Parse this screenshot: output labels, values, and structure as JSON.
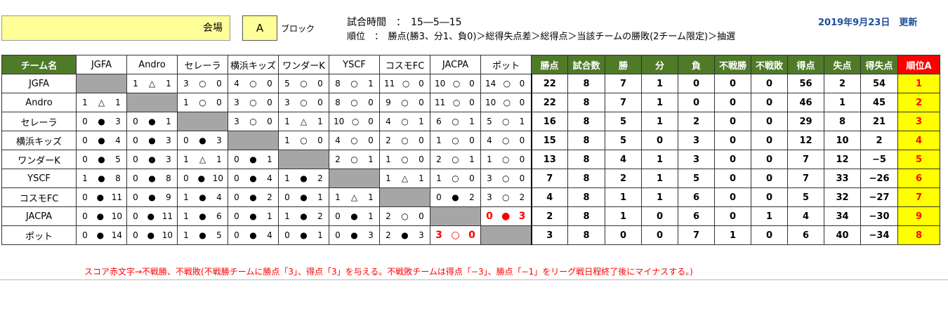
{
  "header": {
    "venue_label": "会場",
    "block_value": "A",
    "block_text": "ブロック",
    "match_time": "試合時間　：　15―5―15",
    "ranking_rule": "順位　：　勝点(勝3、分1、負0)＞総得失点差＞総得点＞当該チームの勝敗(2チーム限定)＞抽選",
    "updated": "2019年9月23日　更新"
  },
  "table": {
    "team_header": "チーム名",
    "opponents": [
      "JGFA",
      "Andro",
      "セレーラ",
      "横浜キッズ",
      "ワンダーK",
      "YSCF",
      "コスモFC",
      "JACPA",
      "ポット"
    ],
    "stat_headers": [
      "勝点",
      "試合数",
      "勝",
      "分",
      "負",
      "不戦勝",
      "不戦敗",
      "得点",
      "失点",
      "得失点"
    ],
    "rank_header": "順位A",
    "rows": [
      {
        "team": "JGFA",
        "results": [
          null,
          [
            "1",
            "△",
            "1"
          ],
          [
            "3",
            "○",
            "0"
          ],
          [
            "4",
            "○",
            "0"
          ],
          [
            "5",
            "○",
            "0"
          ],
          [
            "8",
            "○",
            "1"
          ],
          [
            "11",
            "○",
            "0"
          ],
          [
            "10",
            "○",
            "0"
          ],
          [
            "14",
            "○",
            "0"
          ]
        ],
        "stats": [
          "22",
          "8",
          "7",
          "1",
          "0",
          "0",
          "0",
          "56",
          "2",
          "54"
        ],
        "rank": "1"
      },
      {
        "team": "Andro",
        "results": [
          [
            "1",
            "△",
            "1"
          ],
          null,
          [
            "1",
            "○",
            "0"
          ],
          [
            "3",
            "○",
            "0"
          ],
          [
            "3",
            "○",
            "0"
          ],
          [
            "8",
            "○",
            "0"
          ],
          [
            "9",
            "○",
            "0"
          ],
          [
            "11",
            "○",
            "0"
          ],
          [
            "10",
            "○",
            "0"
          ]
        ],
        "stats": [
          "22",
          "8",
          "7",
          "1",
          "0",
          "0",
          "0",
          "46",
          "1",
          "45"
        ],
        "rank": "2"
      },
      {
        "team": "セレーラ",
        "results": [
          [
            "0",
            "●",
            "3"
          ],
          [
            "0",
            "●",
            "1"
          ],
          null,
          [
            "3",
            "○",
            "0"
          ],
          [
            "1",
            "△",
            "1"
          ],
          [
            "10",
            "○",
            "0"
          ],
          [
            "4",
            "○",
            "1"
          ],
          [
            "6",
            "○",
            "1"
          ],
          [
            "5",
            "○",
            "1"
          ]
        ],
        "stats": [
          "16",
          "8",
          "5",
          "1",
          "2",
          "0",
          "0",
          "29",
          "8",
          "21"
        ],
        "rank": "3"
      },
      {
        "team": "横浜キッズ",
        "results": [
          [
            "0",
            "●",
            "4"
          ],
          [
            "0",
            "●",
            "3"
          ],
          [
            "0",
            "●",
            "3"
          ],
          null,
          [
            "1",
            "○",
            "0"
          ],
          [
            "4",
            "○",
            "0"
          ],
          [
            "2",
            "○",
            "0"
          ],
          [
            "1",
            "○",
            "0"
          ],
          [
            "4",
            "○",
            "0"
          ]
        ],
        "stats": [
          "15",
          "8",
          "5",
          "0",
          "3",
          "0",
          "0",
          "12",
          "10",
          "2"
        ],
        "rank": "4"
      },
      {
        "team": "ワンダーK",
        "results": [
          [
            "0",
            "●",
            "5"
          ],
          [
            "0",
            "●",
            "3"
          ],
          [
            "1",
            "△",
            "1"
          ],
          [
            "0",
            "●",
            "1"
          ],
          null,
          [
            "2",
            "○",
            "1"
          ],
          [
            "1",
            "○",
            "0"
          ],
          [
            "2",
            "○",
            "1"
          ],
          [
            "1",
            "○",
            "0"
          ]
        ],
        "stats": [
          "13",
          "8",
          "4",
          "1",
          "3",
          "0",
          "0",
          "7",
          "12",
          "−5"
        ],
        "rank": "5"
      },
      {
        "team": "YSCF",
        "results": [
          [
            "1",
            "●",
            "8"
          ],
          [
            "0",
            "●",
            "8"
          ],
          [
            "0",
            "●",
            "10"
          ],
          [
            "0",
            "●",
            "4"
          ],
          [
            "1",
            "●",
            "2"
          ],
          null,
          [
            "1",
            "△",
            "1"
          ],
          [
            "1",
            "○",
            "0"
          ],
          [
            "3",
            "○",
            "0"
          ]
        ],
        "stats": [
          "7",
          "8",
          "2",
          "1",
          "5",
          "0",
          "0",
          "7",
          "33",
          "−26"
        ],
        "rank": "6"
      },
      {
        "team": "コスモFC",
        "results": [
          [
            "0",
            "●",
            "11"
          ],
          [
            "0",
            "●",
            "9"
          ],
          [
            "1",
            "●",
            "4"
          ],
          [
            "0",
            "●",
            "2"
          ],
          [
            "0",
            "●",
            "1"
          ],
          [
            "1",
            "△",
            "1"
          ],
          null,
          [
            "0",
            "●",
            "2"
          ],
          [
            "3",
            "○",
            "2"
          ]
        ],
        "stats": [
          "4",
          "8",
          "1",
          "1",
          "6",
          "0",
          "0",
          "5",
          "32",
          "−27"
        ],
        "rank": "7"
      },
      {
        "team": "JACPA",
        "results": [
          [
            "0",
            "●",
            "10"
          ],
          [
            "0",
            "●",
            "11"
          ],
          [
            "1",
            "●",
            "6"
          ],
          [
            "0",
            "●",
            "1"
          ],
          [
            "1",
            "●",
            "2"
          ],
          [
            "0",
            "●",
            "1"
          ],
          [
            "2",
            "○",
            "0"
          ],
          null,
          [
            "0",
            "●",
            "3"
          ]
        ],
        "red": [
          8
        ],
        "stats": [
          "2",
          "8",
          "1",
          "0",
          "6",
          "0",
          "1",
          "4",
          "34",
          "−30"
        ],
        "rank": "9"
      },
      {
        "team": "ポット",
        "results": [
          [
            "0",
            "●",
            "14"
          ],
          [
            "0",
            "●",
            "10"
          ],
          [
            "1",
            "●",
            "5"
          ],
          [
            "0",
            "●",
            "4"
          ],
          [
            "0",
            "●",
            "1"
          ],
          [
            "0",
            "●",
            "3"
          ],
          [
            "2",
            "●",
            "3"
          ],
          [
            "3",
            "○",
            "0"
          ],
          null
        ],
        "red": [
          7
        ],
        "stats": [
          "3",
          "8",
          "0",
          "0",
          "7",
          "1",
          "0",
          "6",
          "40",
          "−34"
        ],
        "rank": "8"
      }
    ]
  },
  "note": "スコア赤文字→不戦勝、不戦敗(不戦勝チームに勝点「3」、得点「3」を与える。不戦敗チームは得点「−3」、勝点「−1」をリーグ戦日程終了後にマイナスする。)"
}
